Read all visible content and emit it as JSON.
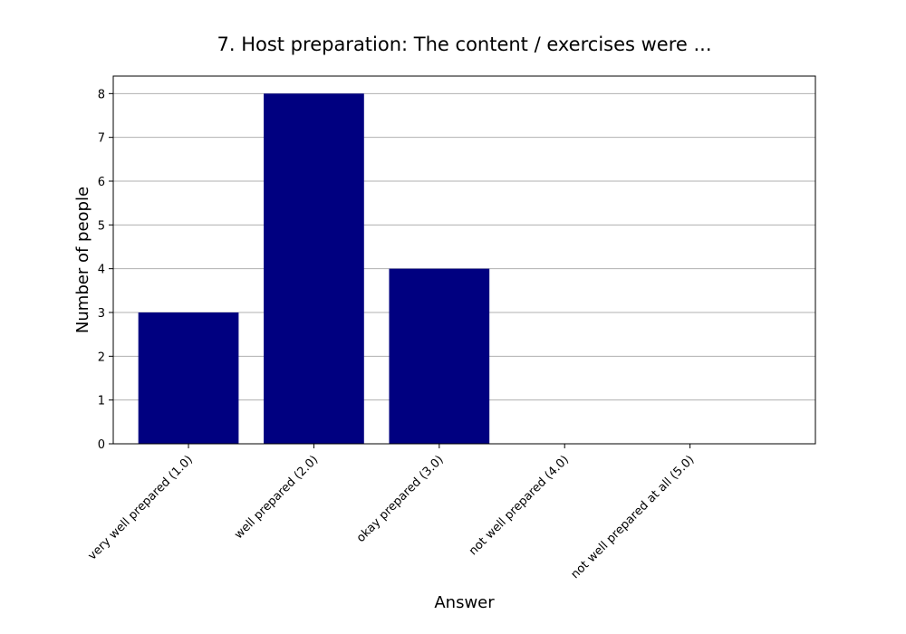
{
  "chart_data": {
    "type": "bar",
    "title": "7. Host preparation: The content / exercises were ...",
    "xlabel": "Answer",
    "ylabel": "Number of people",
    "categories": [
      "very well prepared (1.0)",
      "well prepared (2.0)",
      "okay prepared (3.0)",
      "not well prepared (4.0)",
      "not well prepared at all (5.0)"
    ],
    "values": [
      3,
      8,
      4,
      0,
      0
    ],
    "ylim": [
      0,
      8.4
    ],
    "yticks": [
      0,
      1,
      2,
      3,
      4,
      5,
      6,
      7,
      8
    ],
    "grid": "horizontal",
    "legend": "none",
    "bar_color": "#000080",
    "grid_color": "#b0b0b0"
  }
}
